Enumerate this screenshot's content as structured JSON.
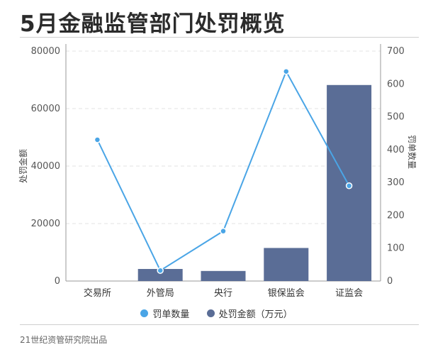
{
  "title": "5月金融监管部门处罚概览",
  "source": "21世纪资管研究院出品",
  "colors": {
    "bar": "#5a6d96",
    "line": "#4aa5e6"
  },
  "chart_data": {
    "type": "bar+line",
    "categories": [
      "交易所",
      "外管局",
      "央行",
      "银保监会",
      "证监会"
    ],
    "series": [
      {
        "name": "罚单数量",
        "type": "line",
        "axis": "right",
        "values": [
          430,
          32,
          152,
          638,
          290
        ]
      },
      {
        "name": "处罚金额（万元）",
        "type": "bar",
        "axis": "left",
        "values": [
          0,
          4200,
          3500,
          11500,
          68200
        ]
      }
    ],
    "ylabel_left": "处罚金额",
    "ylabel_right": "罚单数量",
    "ylim_left": [
      0,
      80000
    ],
    "ylim_right": [
      0,
      700
    ],
    "yticks_left": [
      "0",
      "20000",
      "40000",
      "60000",
      "80000"
    ],
    "yticks_right": [
      "0",
      "100",
      "200",
      "300",
      "400",
      "500",
      "600",
      "700"
    ],
    "grid": "horizontal dashed",
    "legend": "bottom"
  }
}
